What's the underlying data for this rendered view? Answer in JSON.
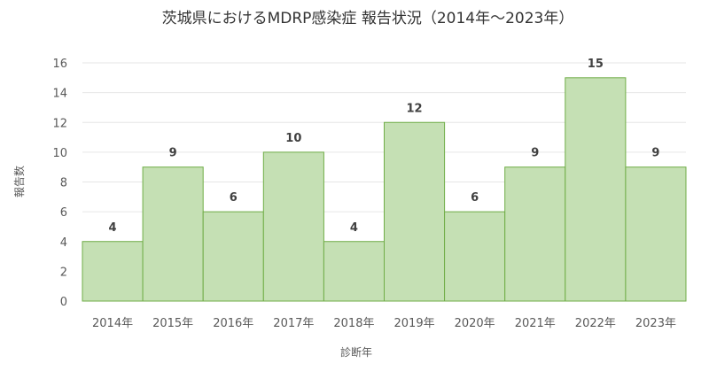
{
  "chart_data": {
    "type": "bar",
    "title": "茨城県におけるMDRP感染症 報告状況（2014年～2023年）",
    "xlabel": "診断年",
    "ylabel": "報告数",
    "categories": [
      "2014年",
      "2015年",
      "2016年",
      "2017年",
      "2018年",
      "2019年",
      "2020年",
      "2021年",
      "2022年",
      "2023年"
    ],
    "series": [
      {
        "values": [
          4,
          9,
          6,
          10,
          4,
          12,
          6,
          9,
          15,
          9
        ]
      }
    ],
    "ylim": [
      0,
      16
    ],
    "yticks": [
      0,
      2,
      4,
      6,
      8,
      10,
      12,
      14,
      16
    ],
    "grid": true,
    "legend": "none",
    "data_labels": true,
    "colors": {
      "bar_fill": "#c5e0b4",
      "bar_stroke": "#70ad47"
    }
  }
}
